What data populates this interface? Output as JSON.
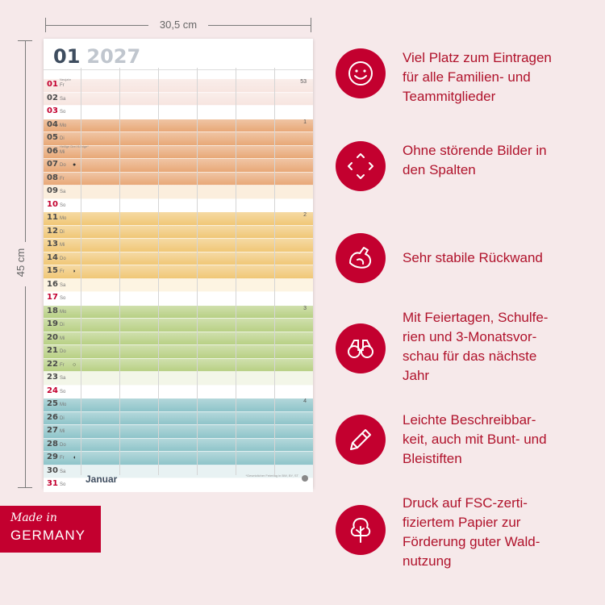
{
  "dimensions": {
    "width_label": "30,5 cm",
    "height_label": "45 cm"
  },
  "calendar": {
    "month_number": "01",
    "year": "2027",
    "month_name": "Januar",
    "footer_note": "*Gesetzlicher Feiertag in BW, BY, ST",
    "colors": {
      "band_red": "#f7e5e0",
      "band_orange": "#e8a877",
      "band_yellow": "#f0c776",
      "band_green": "#b8d084",
      "band_blue": "#8ec4c9",
      "holiday_red": "#c3002f"
    },
    "days": [
      {
        "num": "01",
        "dow": "Fr",
        "holiday": true,
        "note": "Neujahr",
        "wk": "53",
        "band": "red"
      },
      {
        "num": "02",
        "dow": "Sa",
        "holiday": false,
        "band": "red"
      },
      {
        "num": "03",
        "dow": "So",
        "holiday": true,
        "band": "white"
      },
      {
        "num": "04",
        "dow": "Mo",
        "holiday": false,
        "wk": "1",
        "band": "orange"
      },
      {
        "num": "05",
        "dow": "Di",
        "holiday": false,
        "band": "orange"
      },
      {
        "num": "06",
        "dow": "Mi",
        "holiday": false,
        "note": "Heilige Drei Könige*",
        "band": "orange"
      },
      {
        "num": "07",
        "dow": "Do",
        "holiday": false,
        "moon": "●",
        "band": "orange"
      },
      {
        "num": "08",
        "dow": "Fr",
        "holiday": false,
        "band": "orange"
      },
      {
        "num": "09",
        "dow": "Sa",
        "holiday": false,
        "band": "orangelight"
      },
      {
        "num": "10",
        "dow": "So",
        "holiday": true,
        "band": "white"
      },
      {
        "num": "11",
        "dow": "Mo",
        "holiday": false,
        "wk": "2",
        "band": "yellow"
      },
      {
        "num": "12",
        "dow": "Di",
        "holiday": false,
        "band": "yellow"
      },
      {
        "num": "13",
        "dow": "Mi",
        "holiday": false,
        "band": "yellow"
      },
      {
        "num": "14",
        "dow": "Do",
        "holiday": false,
        "band": "yellow"
      },
      {
        "num": "15",
        "dow": "Fr",
        "holiday": false,
        "moon": "◗",
        "band": "yellow"
      },
      {
        "num": "16",
        "dow": "Sa",
        "holiday": false,
        "band": "yellowlight"
      },
      {
        "num": "17",
        "dow": "So",
        "holiday": true,
        "band": "white"
      },
      {
        "num": "18",
        "dow": "Mo",
        "holiday": false,
        "wk": "3",
        "band": "green"
      },
      {
        "num": "19",
        "dow": "Di",
        "holiday": false,
        "band": "green"
      },
      {
        "num": "20",
        "dow": "Mi",
        "holiday": false,
        "band": "green"
      },
      {
        "num": "21",
        "dow": "Do",
        "holiday": false,
        "band": "green"
      },
      {
        "num": "22",
        "dow": "Fr",
        "holiday": false,
        "moon": "○",
        "band": "green"
      },
      {
        "num": "23",
        "dow": "Sa",
        "holiday": false,
        "band": "greenlight"
      },
      {
        "num": "24",
        "dow": "So",
        "holiday": true,
        "band": "white"
      },
      {
        "num": "25",
        "dow": "Mo",
        "holiday": false,
        "wk": "4",
        "band": "blue"
      },
      {
        "num": "26",
        "dow": "Di",
        "holiday": false,
        "band": "blue"
      },
      {
        "num": "27",
        "dow": "Mi",
        "holiday": false,
        "band": "blue"
      },
      {
        "num": "28",
        "dow": "Do",
        "holiday": false,
        "band": "blue"
      },
      {
        "num": "29",
        "dow": "Fr",
        "holiday": false,
        "moon": "◖",
        "band": "blue"
      },
      {
        "num": "30",
        "dow": "Sa",
        "holiday": false,
        "band": "bluelight"
      },
      {
        "num": "31",
        "dow": "So",
        "holiday": true,
        "band": "white"
      }
    ]
  },
  "badge": {
    "line1": "Made in",
    "line2": "GERMANY"
  },
  "features": [
    {
      "icon": "smiley-icon",
      "text": "Viel Platz zum Eintragen\nfür alle Familien- und\nTeammitglieder"
    },
    {
      "icon": "expand-arrows-icon",
      "text": "Ohne störende Bilder in\nden Spalten"
    },
    {
      "icon": "strong-arm-icon",
      "text": "Sehr stabile Rückwand"
    },
    {
      "icon": "binoculars-icon",
      "text": "Mit Feiertagen, Schulfe-\nrien und 3-Monatsvor-\nschau für das nächste\nJahr"
    },
    {
      "icon": "pencil-icon",
      "text": "Leichte Beschreibbar-\nkeit, auch mit Bunt- und\nBleistiften"
    },
    {
      "icon": "tree-icon",
      "text": "Druck auf FSC-zerti-\nfiziertem Papier zur\nFörderung guter Wald-\nnutzung"
    }
  ]
}
